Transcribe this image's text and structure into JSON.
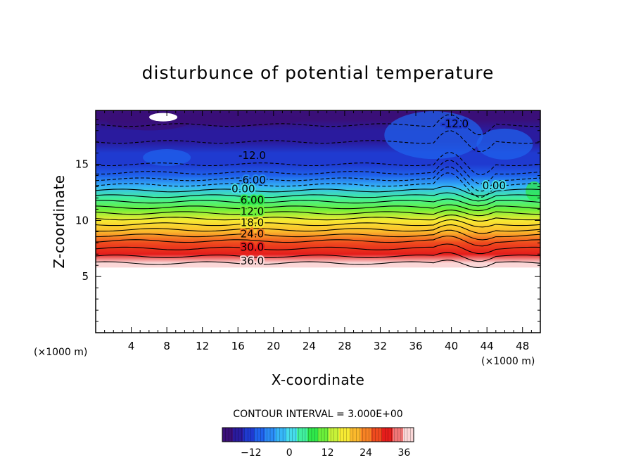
{
  "chart_data": {
    "type": "heatmap",
    "title": "disturbunce of potential temperature",
    "xlabel": "X-coordinate",
    "ylabel": "Z-coordinate",
    "x_unit": "(×1000 m)",
    "xlim": [
      0,
      50
    ],
    "ylim": [
      0,
      19.8
    ],
    "x_ticks": [
      4,
      8,
      12,
      16,
      20,
      24,
      28,
      32,
      36,
      40,
      44,
      48
    ],
    "y_ticks": [
      5,
      10,
      15
    ],
    "contour_interval_text": "CONTOUR INTERVAL = 3.000E+00",
    "contour_interval": 3.0,
    "colorbar": {
      "range": [
        -21,
        39
      ],
      "ticks": [
        -12,
        0,
        12,
        24,
        36
      ]
    },
    "contour_levels": [
      {
        "label": "-12.0",
        "value": -12,
        "x": 17.6,
        "y": 15.8
      },
      {
        "label": "-12.0",
        "value": -12,
        "x": 40.4,
        "y": 18.6
      },
      {
        "label": "-6.00",
        "value": -6,
        "x": 17.6,
        "y": 13.6
      },
      {
        "label": "0.00",
        "value": 0,
        "x": 16.6,
        "y": 12.8
      },
      {
        "label": "0.00",
        "value": 0,
        "x": 44.8,
        "y": 13.1
      },
      {
        "label": "6.00",
        "value": 6,
        "x": 17.6,
        "y": 11.8
      },
      {
        "label": "12.0",
        "value": 12,
        "x": 17.6,
        "y": 10.8
      },
      {
        "label": "18.0",
        "value": 18,
        "x": 17.6,
        "y": 9.8
      },
      {
        "label": "24.0",
        "value": 24,
        "x": 17.6,
        "y": 8.8
      },
      {
        "label": "30.0",
        "value": 30,
        "x": 17.6,
        "y": 7.6
      },
      {
        "label": "36.0",
        "value": 36,
        "x": 17.6,
        "y": 6.4
      }
    ],
    "field_lower_boundary_z": 5.8,
    "profile": [
      {
        "z": 5.8,
        "value": 39
      },
      {
        "z": 6.2,
        "value": 36
      },
      {
        "z": 7.0,
        "value": 32
      },
      {
        "z": 8.0,
        "value": 28
      },
      {
        "z": 9.0,
        "value": 22
      },
      {
        "z": 10.0,
        "value": 16
      },
      {
        "z": 11.0,
        "value": 10
      },
      {
        "z": 12.0,
        "value": 4
      },
      {
        "z": 13.0,
        "value": -2
      },
      {
        "z": 14.0,
        "value": -8
      },
      {
        "z": 15.0,
        "value": -12
      },
      {
        "z": 16.0,
        "value": -14
      },
      {
        "z": 17.0,
        "value": -15
      },
      {
        "z": 18.0,
        "value": -17
      },
      {
        "z": 19.0,
        "value": -19
      },
      {
        "z": 19.8,
        "value": -20
      }
    ],
    "colors": {
      "palette": [
        "#3a0f78",
        "#2a1b9e",
        "#1f3ad0",
        "#1f62ec",
        "#2a8bf5",
        "#36b6f7",
        "#46dcec",
        "#41ef9e",
        "#2fe84a",
        "#6bf03a",
        "#c7f238",
        "#f7ea33",
        "#fbb92c",
        "#f78224",
        "#ef4a1e",
        "#e51d1b",
        "#f07676",
        "#fbd7d7"
      ]
    }
  }
}
